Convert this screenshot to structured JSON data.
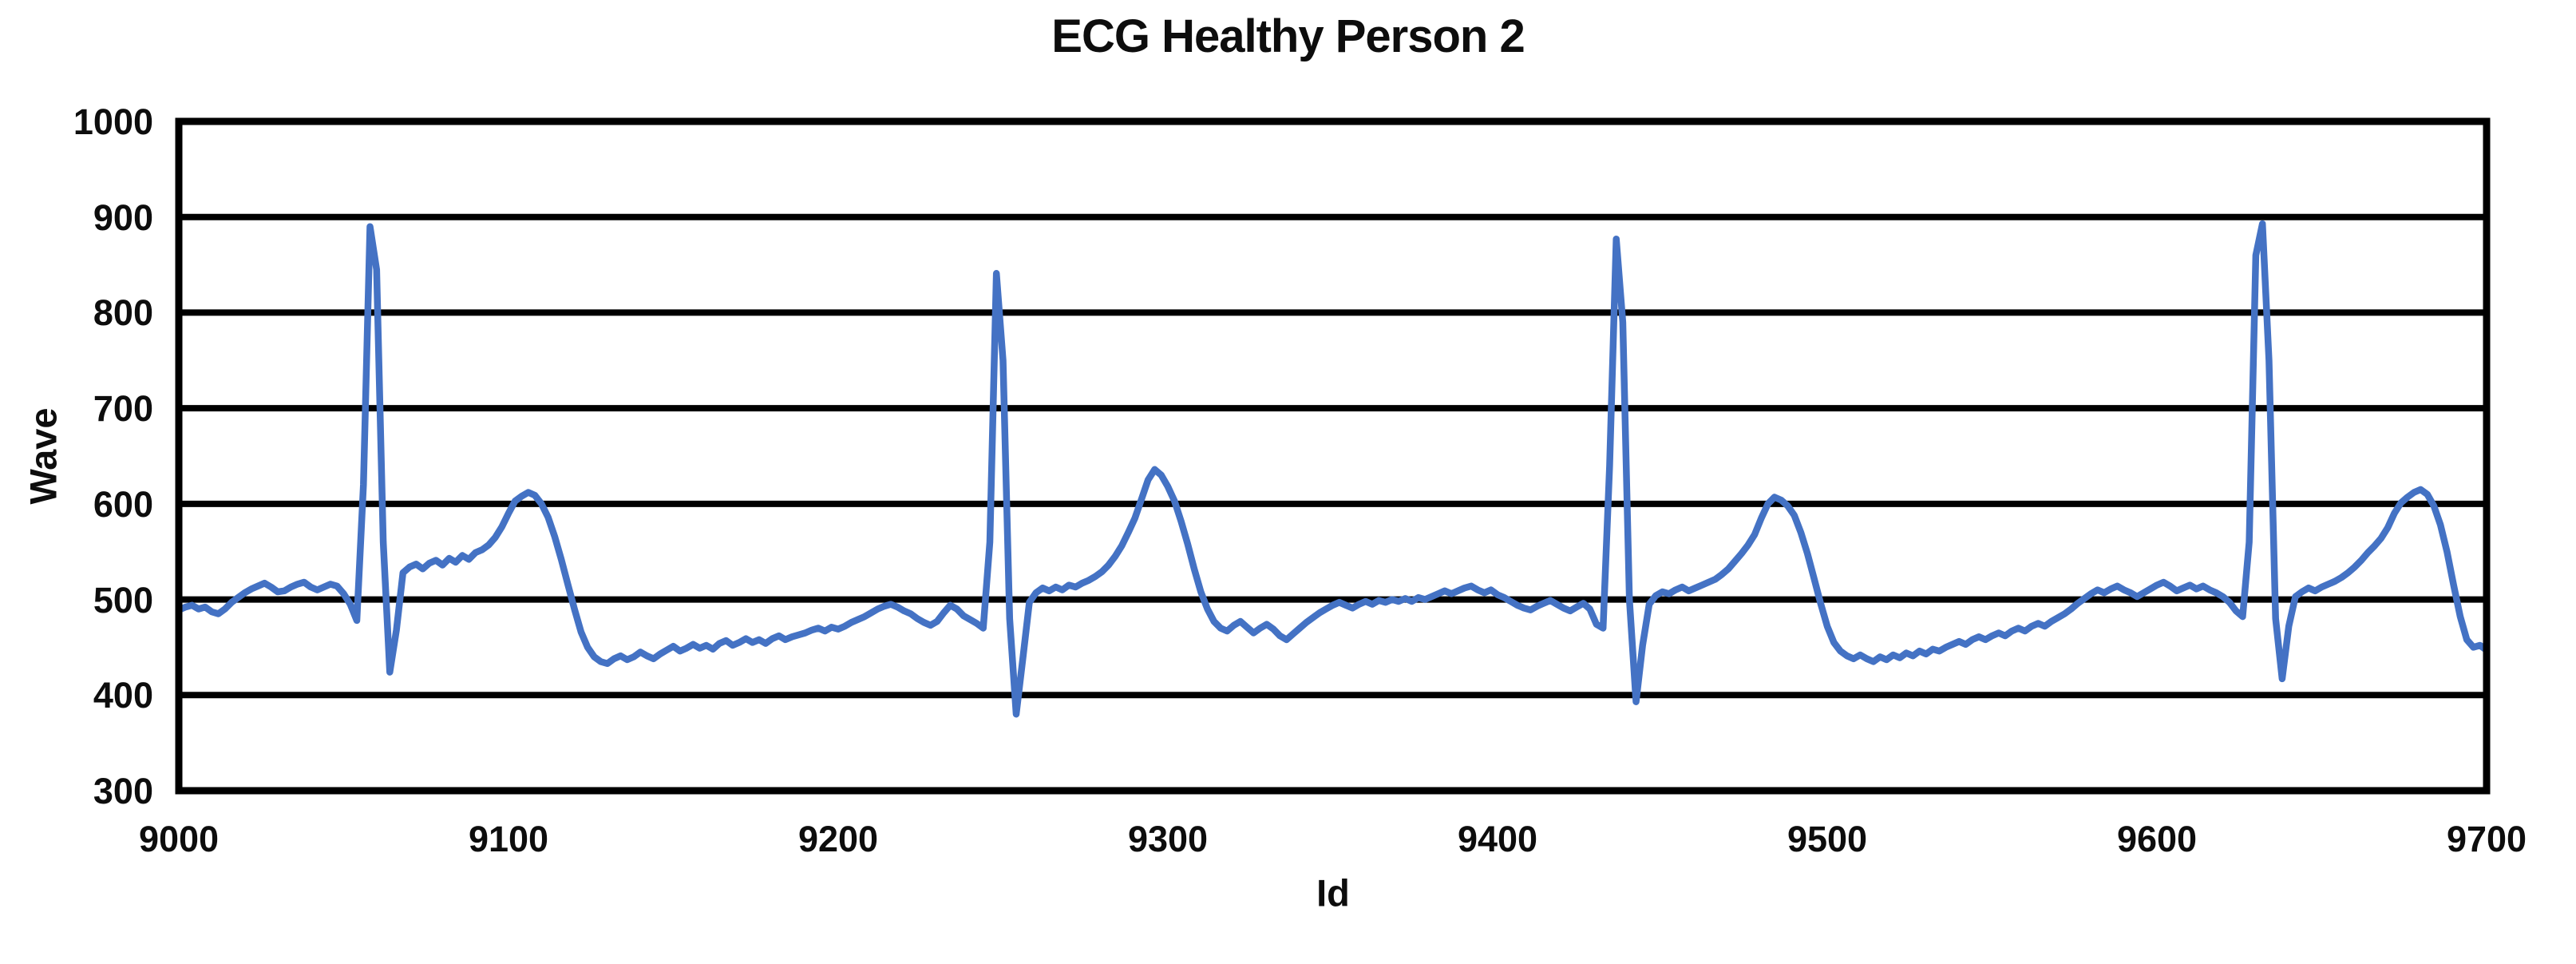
{
  "title": "ECG Healthy Person 2",
  "chart_data": {
    "type": "line",
    "title": "ECG Healthy Person 2",
    "xlabel": "Id",
    "ylabel": "Wave",
    "xlim": [
      9000,
      9700
    ],
    "ylim": [
      300,
      1000
    ],
    "x_ticks": [
      9000,
      9100,
      9200,
      9300,
      9400,
      9500,
      9600,
      9700
    ],
    "y_ticks": [
      1000,
      900,
      800,
      700,
      600,
      500,
      400,
      300
    ],
    "grid": "horizontal solid black lines, no vertical gridlines",
    "legend_position": "none",
    "plot_border_color": "#000000",
    "gridline_color": "#000000",
    "series": [
      {
        "name": "Wave",
        "color": "#4472C4",
        "x_start": 9000,
        "x_step": 2,
        "values": [
          489,
          492,
          494,
          490,
          492,
          487,
          485,
          490,
          497,
          502,
          507,
          511,
          514,
          517,
          513,
          508,
          509,
          513,
          516,
          518,
          513,
          510,
          513,
          516,
          514,
          506,
          495,
          478,
          620,
          890,
          845,
          560,
          424,
          468,
          528,
          534,
          537,
          532,
          538,
          541,
          536,
          543,
          539,
          546,
          542,
          549,
          552,
          557,
          565,
          576,
          590,
          603,
          608,
          612,
          609,
          600,
          586,
          566,
          542,
          516,
          490,
          466,
          450,
          440,
          435,
          433,
          438,
          441,
          437,
          440,
          445,
          441,
          438,
          443,
          447,
          451,
          446,
          449,
          453,
          449,
          452,
          448,
          454,
          457,
          452,
          455,
          459,
          455,
          458,
          454,
          459,
          462,
          458,
          461,
          463,
          465,
          468,
          470,
          467,
          471,
          469,
          472,
          476,
          479,
          482,
          486,
          490,
          493,
          495,
          492,
          488,
          485,
          480,
          476,
          473,
          477,
          486,
          494,
          490,
          483,
          479,
          475,
          470,
          560,
          841,
          750,
          480,
          380,
          438,
          497,
          507,
          512,
          509,
          513,
          510,
          515,
          513,
          517,
          520,
          524,
          529,
          536,
          545,
          556,
          570,
          585,
          605,
          625,
          636,
          630,
          618,
          603,
          582,
          558,
          532,
          508,
          490,
          477,
          470,
          467,
          473,
          477,
          471,
          465,
          470,
          474,
          469,
          462,
          458,
          464,
          470,
          476,
          481,
          486,
          490,
          494,
          497,
          494,
          491,
          495,
          498,
          495,
          499,
          497,
          500,
          498,
          501,
          498,
          502,
          500,
          503,
          506,
          509,
          506,
          509,
          512,
          514,
          510,
          507,
          510,
          505,
          502,
          498,
          494,
          491,
          489,
          493,
          496,
          499,
          495,
          491,
          488,
          492,
          496,
          490,
          474,
          470,
          640,
          877,
          790,
          500,
          393,
          452,
          495,
          504,
          508,
          506,
          510,
          513,
          509,
          512,
          515,
          518,
          521,
          526,
          532,
          540,
          548,
          557,
          568,
          585,
          600,
          607,
          604,
          598,
          588,
          570,
          548,
          522,
          496,
          472,
          455,
          446,
          441,
          438,
          442,
          438,
          435,
          440,
          437,
          442,
          439,
          444,
          441,
          446,
          443,
          448,
          446,
          450,
          453,
          456,
          453,
          458,
          461,
          458,
          462,
          465,
          462,
          467,
          470,
          467,
          472,
          475,
          472,
          477,
          481,
          485,
          490,
          496,
          501,
          506,
          510,
          507,
          511,
          514,
          510,
          507,
          503,
          507,
          511,
          515,
          518,
          514,
          509,
          512,
          515,
          511,
          514,
          510,
          507,
          503,
          497,
          488,
          482,
          560,
          860,
          893,
          750,
          480,
          417,
          472,
          503,
          508,
          512,
          509,
          513,
          516,
          519,
          523,
          528,
          534,
          541,
          549,
          556,
          564,
          575,
          590,
          601,
          607,
          612,
          615,
          610,
          598,
          578,
          550,
          515,
          482,
          458,
          450,
          452,
          447
        ]
      }
    ],
    "layout": {
      "plot_left": 224,
      "plot_top": 152,
      "plot_right": 3115,
      "plot_bottom": 990,
      "gridline_width": 8,
      "border_width": 9,
      "series_width": 8.5
    }
  }
}
